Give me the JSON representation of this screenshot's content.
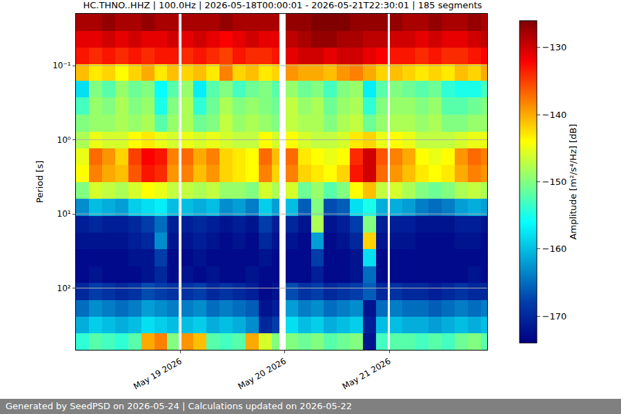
{
  "chart_data": {
    "type": "heatmap",
    "title": "HC.THNO..HHZ | 100.0Hz | 2026-05-18T00:00:01 - 2026-05-21T22:30:01 | 185 segments",
    "ylabel": "Period [s]",
    "footer": "Generated by SeedPSD on 2026-05-24 | Calculations updated on 2026-05-22",
    "log": "y",
    "grid": true,
    "xlim": [
      "2026-05-18 00:00:01",
      "2026-05-21 22:30:01"
    ],
    "xticks": [
      {
        "value": "2026-05-19",
        "label": "May 19 2026"
      },
      {
        "value": "2026-05-20",
        "label": "May 20 2026"
      },
      {
        "value": "2026-05-21",
        "label": "May 21 2026"
      }
    ],
    "ylim": [
      0.02,
      680
    ],
    "yticks": [
      {
        "value": 0.1,
        "label": "10⁻¹"
      },
      {
        "value": 1,
        "label": "10⁰"
      },
      {
        "value": 10,
        "label": "10¹"
      },
      {
        "value": 100,
        "label": "10²"
      }
    ],
    "x_edges": [
      "2026-05-18 00:00:01",
      "2026-05-18 03:00",
      "2026-05-18 06:00",
      "2026-05-18 09:00",
      "2026-05-18 12:00",
      "2026-05-18 15:00",
      "2026-05-18 18:00",
      "2026-05-18 21:00",
      "2026-05-18 23:40",
      "2026-05-19 00:20",
      "2026-05-19 03:00",
      "2026-05-19 06:00",
      "2026-05-19 09:00",
      "2026-05-19 12:00",
      "2026-05-19 15:00",
      "2026-05-19 18:00",
      "2026-05-19 21:00",
      "2026-05-19 22:45",
      "2026-05-20 00:10",
      "2026-05-20 03:00",
      "2026-05-20 06:00",
      "2026-05-20 09:00",
      "2026-05-20 12:00",
      "2026-05-20 15:00",
      "2026-05-20 18:00",
      "2026-05-20 21:00",
      "2026-05-20 23:40",
      "2026-05-21 00:10",
      "2026-05-21 03:00",
      "2026-05-21 06:00",
      "2026-05-21 09:00",
      "2026-05-21 12:00",
      "2026-05-21 15:00",
      "2026-05-21 18:00",
      "2026-05-21 21:00",
      "2026-05-21 22:30:01"
    ],
    "y_edges": [
      0.02,
      0.034,
      0.057,
      0.096,
      0.16,
      0.27,
      0.46,
      0.78,
      1.3,
      2.2,
      3.7,
      6.3,
      10.6,
      18,
      30,
      51,
      86,
      145,
      245,
      410,
      680
    ],
    "cells": [
      [
        -128,
        -128,
        -127,
        -128,
        -128,
        -127,
        -128,
        -128,
        null,
        -128,
        -128,
        -128,
        -127,
        -128,
        -128,
        -128,
        -128,
        null,
        -127,
        -127,
        -126,
        -126,
        -126,
        -127,
        -127,
        -127,
        null,
        -127,
        -128,
        -128,
        -127,
        -128,
        -128,
        -127,
        -128
      ],
      [
        -131,
        -131,
        -130,
        -131,
        -130,
        -131,
        -131,
        -130,
        null,
        -131,
        -130,
        -131,
        -132,
        -131,
        -130,
        -131,
        -131,
        null,
        -129,
        -128,
        -127,
        -127,
        -128,
        -128,
        -129,
        -129,
        null,
        -130,
        -130,
        -131,
        -130,
        -131,
        -131,
        -130,
        -129
      ],
      [
        -133,
        -134,
        -133,
        -134,
        -133,
        -134,
        -133,
        -133,
        null,
        -134,
        -133,
        -134,
        -135,
        -133,
        -134,
        -134,
        -133,
        null,
        -131,
        -130,
        -130,
        -131,
        -130,
        -130,
        -131,
        -132,
        null,
        -133,
        -133,
        -134,
        -133,
        -134,
        -134,
        -133,
        -132
      ],
      [
        -141,
        -143,
        -142,
        -144,
        -142,
        -140,
        -143,
        -141,
        null,
        -142,
        -141,
        -143,
        -138,
        -142,
        -141,
        -143,
        -142,
        null,
        -139,
        -140,
        -140,
        -141,
        -139,
        -138,
        -140,
        -142,
        null,
        -141,
        -142,
        -143,
        -142,
        -143,
        -141,
        -142,
        -140
      ],
      [
        -158,
        -150,
        -152,
        -149,
        -151,
        -150,
        -156,
        -152,
        null,
        -149,
        -157,
        -152,
        -150,
        -153,
        -151,
        -150,
        -152,
        null,
        -149,
        -151,
        -150,
        -153,
        -150,
        -149,
        -157,
        -152,
        null,
        -150,
        -151,
        -152,
        -151,
        -154,
        -155,
        -155,
        -153
      ],
      [
        -153,
        -149,
        -150,
        -148,
        -150,
        -149,
        -155,
        -150,
        null,
        -148,
        -154,
        -151,
        -148,
        -150,
        -149,
        -150,
        -151,
        null,
        -147,
        -149,
        -148,
        -151,
        -149,
        -148,
        -154,
        -150,
        null,
        -149,
        -149,
        -150,
        -149,
        -152,
        -152,
        -151,
        -150
      ],
      [
        -150,
        -149,
        -149,
        -148,
        -149,
        -148,
        -152,
        -149,
        null,
        -148,
        -151,
        -150,
        -147,
        -149,
        -148,
        -149,
        -150,
        null,
        -147,
        -148,
        -148,
        -150,
        -148,
        -147,
        -151,
        -149,
        null,
        -148,
        -148,
        -149,
        -148,
        -150,
        -150,
        -149,
        -149
      ],
      [
        -148,
        -145,
        -146,
        -146,
        -144,
        -143,
        -145,
        -146,
        null,
        -145,
        -146,
        -145,
        -146,
        -147,
        -147,
        -144,
        -146,
        null,
        -144,
        -146,
        -147,
        -147,
        -146,
        -143,
        -142,
        -145,
        null,
        -144,
        -145,
        -147,
        -147,
        -147,
        -146,
        -145,
        -145
      ],
      [
        -145,
        -137,
        -139,
        -142,
        -135,
        -132,
        -133,
        -138,
        null,
        -137,
        -140,
        -138,
        -142,
        -143,
        -144,
        -137,
        -141,
        null,
        -137,
        -143,
        -144,
        -145,
        -144,
        -134,
        -130,
        -136,
        null,
        -138,
        -140,
        -144,
        -145,
        -144,
        -139,
        -137,
        -138
      ],
      [
        -144,
        -138,
        -140,
        -141,
        -136,
        -133,
        -134,
        -139,
        null,
        -138,
        -141,
        -139,
        -142,
        -143,
        -144,
        -138,
        -142,
        null,
        -138,
        -142,
        -143,
        -144,
        -142,
        -133,
        -130,
        -137,
        null,
        -139,
        -141,
        -143,
        -144,
        -143,
        -140,
        -138,
        -139
      ],
      [
        -150,
        -146,
        -147,
        -148,
        -146,
        -144,
        -145,
        -147,
        null,
        -147,
        -148,
        -147,
        -149,
        -149,
        -150,
        -146,
        -148,
        null,
        -146,
        -151,
        -149,
        -152,
        -150,
        -144,
        -141,
        -147,
        null,
        -146,
        -148,
        -150,
        -151,
        -150,
        -148,
        -147,
        -148
      ],
      [
        -163,
        -160,
        -161,
        -162,
        -159,
        -158,
        -157,
        -160,
        null,
        -160,
        -161,
        -160,
        -163,
        -162,
        -164,
        -159,
        -162,
        null,
        -160,
        -166,
        -150,
        -167,
        -166,
        -158,
        -155,
        -161,
        null,
        -161,
        -162,
        -164,
        -165,
        -164,
        -162,
        -161,
        -162
      ],
      [
        -171,
        -170,
        -171,
        -171,
        -170,
        -168,
        -165,
        -171,
        null,
        -171,
        -170,
        -171,
        -172,
        -171,
        -172,
        -168,
        -171,
        null,
        -170,
        -172,
        -148,
        -172,
        -171,
        -168,
        -150,
        -171,
        null,
        -171,
        -171,
        -172,
        -172,
        -172,
        -171,
        -171,
        -172
      ],
      [
        -172,
        -172,
        -172,
        -172,
        -171,
        -170,
        -163,
        -172,
        null,
        -172,
        -171,
        -172,
        -173,
        -172,
        -173,
        -170,
        -172,
        null,
        -172,
        -173,
        -162,
        -173,
        -172,
        -170,
        -142,
        -172,
        null,
        -172,
        -172,
        -173,
        -173,
        -173,
        -172,
        -172,
        -173
      ],
      [
        -173,
        -173,
        -173,
        -173,
        -172,
        -172,
        -168,
        -173,
        null,
        -173,
        -172,
        -173,
        -173,
        -173,
        -173,
        -172,
        -173,
        null,
        -173,
        -173,
        -168,
        -173,
        -173,
        -172,
        -158,
        -173,
        null,
        -173,
        -173,
        -173,
        -173,
        -173,
        -173,
        -173,
        -173
      ],
      [
        -173,
        -172,
        -173,
        -173,
        -173,
        -172,
        -170,
        -173,
        null,
        -172,
        -173,
        -172,
        -173,
        -173,
        -172,
        -173,
        -173,
        null,
        -173,
        -173,
        -171,
        -173,
        -173,
        -172,
        -165,
        -173,
        null,
        -173,
        -173,
        -173,
        -173,
        -173,
        -173,
        -172,
        -173
      ],
      [
        -170,
        -168,
        -169,
        -170,
        -169,
        -167,
        -168,
        -169,
        null,
        -169,
        -168,
        -170,
        -169,
        -170,
        -171,
        -173,
        -172,
        null,
        -167,
        -169,
        -168,
        -170,
        -169,
        -168,
        -166,
        -170,
        null,
        -169,
        -170,
        -170,
        -171,
        -170,
        -169,
        -170,
        -170
      ],
      [
        -165,
        -163,
        -164,
        -165,
        -164,
        -162,
        -163,
        -164,
        null,
        -164,
        -163,
        -165,
        -164,
        -165,
        -166,
        -172,
        -171,
        null,
        -162,
        -164,
        -163,
        -165,
        -164,
        -163,
        -172,
        -165,
        null,
        -164,
        -165,
        -165,
        -166,
        -165,
        -164,
        -165,
        -164
      ],
      [
        -161,
        -159,
        -160,
        -161,
        -160,
        -158,
        -159,
        -160,
        null,
        -160,
        -159,
        -161,
        -160,
        -161,
        -163,
        -170,
        -168,
        null,
        -158,
        -160,
        -159,
        -161,
        -160,
        -159,
        -171,
        -160,
        null,
        -160,
        -161,
        -161,
        -162,
        -161,
        -160,
        -161,
        -160
      ],
      [
        -154,
        -152,
        -153,
        -154,
        -152,
        -140,
        -138,
        -150,
        null,
        -139,
        -141,
        -152,
        -153,
        -152,
        -140,
        -146,
        -150,
        null,
        -150,
        -151,
        -150,
        -152,
        -151,
        -150,
        -172,
        -153,
        null,
        -152,
        -152,
        -153,
        -152,
        -153,
        -151,
        -150,
        -152
      ]
    ],
    "colorbar": {
      "label": "Amplitude [m²/s⁴/Hz] [dB]",
      "range": [
        -174,
        -126
      ],
      "ticks": [
        {
          "value": -130,
          "label": "−130"
        },
        {
          "value": -140,
          "label": "−140"
        },
        {
          "value": -150,
          "label": "−150"
        },
        {
          "value": -160,
          "label": "−160"
        },
        {
          "value": -170,
          "label": "−170"
        }
      ]
    }
  }
}
